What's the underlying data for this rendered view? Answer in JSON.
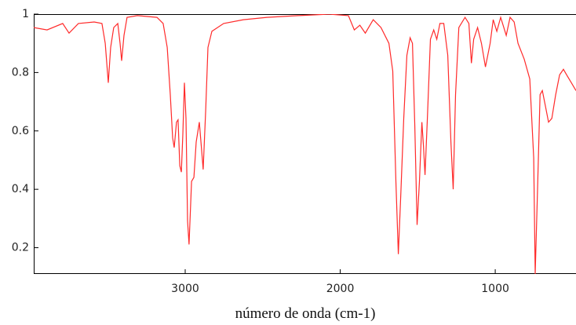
{
  "chart_data": {
    "type": "line",
    "x_label": "número de onda (cm-1)",
    "xlim": [
      3977,
      479
    ],
    "ylim": [
      0.11,
      1
    ],
    "xticks": [
      3000,
      2000,
      1000
    ],
    "yticks": [
      0.2,
      0.4,
      0.6,
      0.8,
      1
    ],
    "series": [
      {
        "color": "#ff2a2a",
        "x": [
          3977,
          3891,
          3790,
          3749,
          3689,
          3587,
          3537,
          3516,
          3496,
          3481,
          3461,
          3435,
          3420,
          3410,
          3395,
          3375,
          3309,
          3182,
          3142,
          3116,
          3096,
          3081,
          3071,
          3056,
          3046,
          3035,
          3025,
          3015,
          3005,
          2995,
          2985,
          2975,
          2959,
          2944,
          2929,
          2909,
          2894,
          2884,
          2868,
          2853,
          2828,
          2752,
          2625,
          2473,
          2271,
          2071,
          1947,
          1909,
          1873,
          1838,
          1787,
          1737,
          1686,
          1661,
          1641,
          1625,
          1610,
          1590,
          1570,
          1549,
          1534,
          1519,
          1504,
          1489,
          1473,
          1463,
          1453,
          1438,
          1418,
          1397,
          1377,
          1357,
          1332,
          1306,
          1286,
          1271,
          1256,
          1235,
          1195,
          1170,
          1154,
          1139,
          1114,
          1089,
          1063,
          1033,
          1013,
          990,
          965,
          929,
          904,
          878,
          853,
          813,
          777,
          752,
          742,
          727,
          711,
          696,
          676,
          656,
          635,
          610,
          585,
          560,
          539,
          509,
          479
        ],
        "values": [
          0.954,
          0.946,
          0.968,
          0.935,
          0.968,
          0.973,
          0.968,
          0.9,
          0.765,
          0.886,
          0.954,
          0.968,
          0.9,
          0.84,
          0.927,
          0.989,
          0.995,
          0.989,
          0.968,
          0.886,
          0.724,
          0.576,
          0.543,
          0.63,
          0.638,
          0.481,
          0.459,
          0.589,
          0.765,
          0.643,
          0.292,
          0.211,
          0.427,
          0.441,
          0.562,
          0.63,
          0.535,
          0.468,
          0.67,
          0.886,
          0.941,
          0.968,
          0.981,
          0.989,
          0.995,
          1.0,
          0.995,
          0.946,
          0.962,
          0.935,
          0.981,
          0.954,
          0.9,
          0.805,
          0.427,
          0.178,
          0.373,
          0.643,
          0.859,
          0.919,
          0.9,
          0.616,
          0.278,
          0.427,
          0.63,
          0.549,
          0.449,
          0.643,
          0.914,
          0.946,
          0.914,
          0.968,
          0.968,
          0.859,
          0.562,
          0.4,
          0.724,
          0.954,
          0.989,
          0.968,
          0.832,
          0.914,
          0.954,
          0.9,
          0.819,
          0.9,
          0.981,
          0.941,
          0.989,
          0.927,
          0.989,
          0.973,
          0.9,
          0.846,
          0.778,
          0.508,
          0.11,
          0.4,
          0.724,
          0.738,
          0.684,
          0.63,
          0.643,
          0.724,
          0.792,
          0.811,
          0.792,
          0.765,
          0.738
        ]
      }
    ]
  }
}
